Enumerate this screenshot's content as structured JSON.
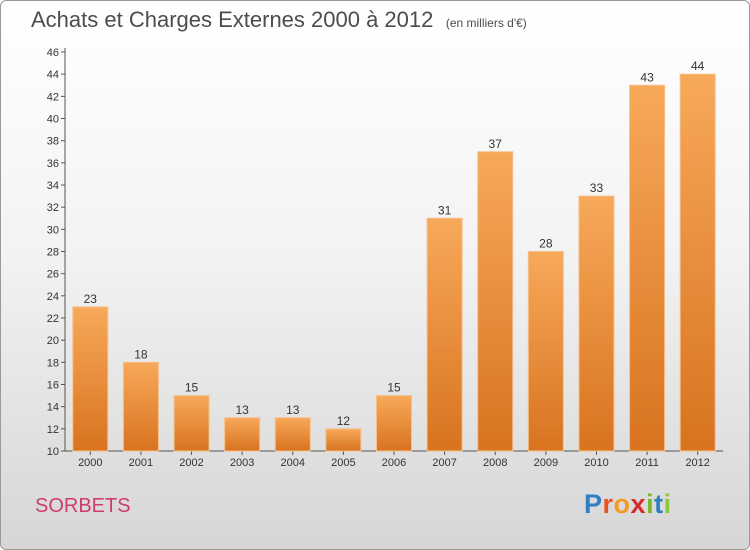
{
  "chart_data": {
    "type": "bar",
    "title": "Achats et Charges Externes 2000 à 2012",
    "unit": "(en milliers d'€)",
    "categories": [
      "2000",
      "2001",
      "2002",
      "2003",
      "2004",
      "2005",
      "2006",
      "2007",
      "2008",
      "2009",
      "2010",
      "2011",
      "2012"
    ],
    "values": [
      23,
      18,
      15,
      13,
      13,
      12,
      15,
      31,
      37,
      28,
      33,
      43,
      44
    ],
    "ylim": [
      10,
      46
    ],
    "yticks": [
      10,
      12,
      14,
      16,
      18,
      20,
      22,
      24,
      26,
      28,
      30,
      32,
      34,
      36,
      38,
      40,
      42,
      44,
      46
    ],
    "grid": false,
    "bar_color": "#f0913a"
  },
  "place": "SORBETS",
  "logo": {
    "text": "Proxiti",
    "letters": [
      "P",
      "r",
      "o",
      "x",
      "i",
      "t",
      "i"
    ],
    "colors": [
      "#2f7fc4",
      "#e8531f",
      "#f29a1f",
      "#d92a2a",
      "#7ab828",
      "#2f7fc4",
      "#8dc63f"
    ]
  }
}
